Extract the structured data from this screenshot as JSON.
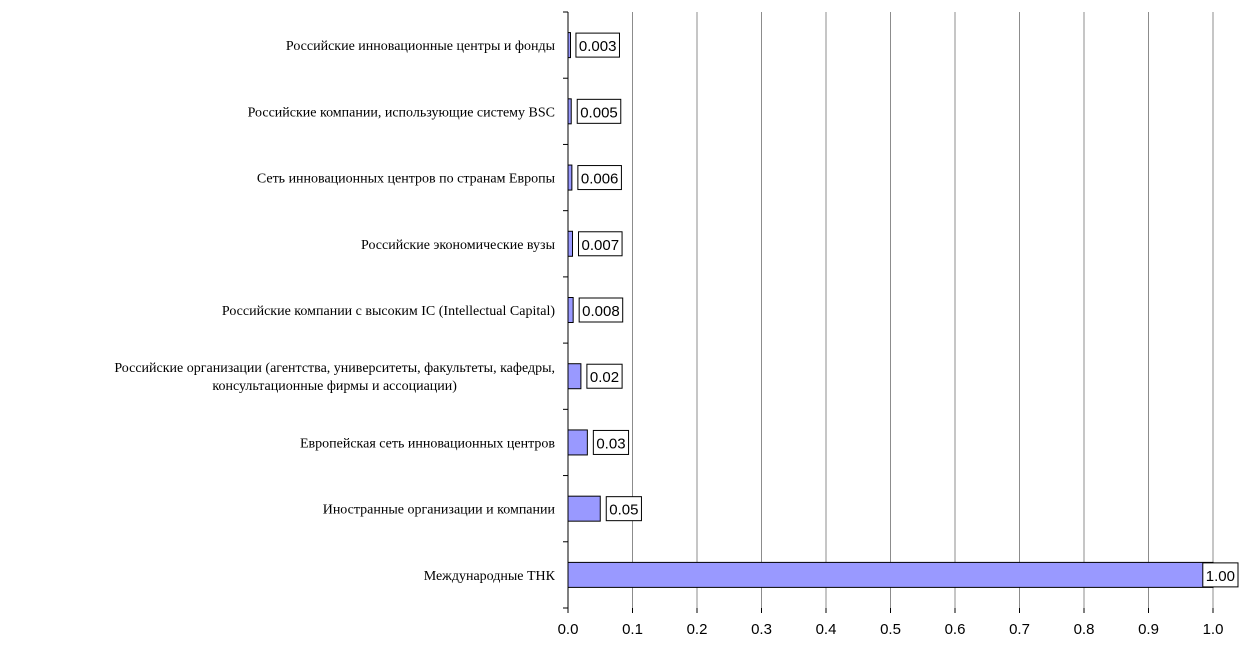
{
  "chart_data": {
    "type": "bar",
    "orientation": "horizontal",
    "title": "",
    "xlabel": "",
    "ylabel": "",
    "xlim": [
      0,
      1.0
    ],
    "x_ticks": [
      "0.0",
      "0.1",
      "0.2",
      "0.3",
      "0.4",
      "0.5",
      "0.6",
      "0.7",
      "0.8",
      "0.9",
      "1.0"
    ],
    "grid": "vertical",
    "legend": "none",
    "bar_color": "#9999ff",
    "categories": [
      [
        "Российские инновационные центры и фонды"
      ],
      [
        "Российские компании, использующие систему BSC"
      ],
      [
        "Сеть инновационных центров  по странам Европы"
      ],
      [
        "Российские экономические вузы"
      ],
      [
        "Российские компании с высоким IC (Intellectual Capital)"
      ],
      [
        "Российские организации (агентства, университеты, факультеты, кафедры,",
        "консультационные фирмы и ассоциации)"
      ],
      [
        "Европейская сеть инновационных центров"
      ],
      [
        "Иностранные организации и компании"
      ],
      [
        "Международные ТНК"
      ]
    ],
    "values": [
      0.003,
      0.005,
      0.006,
      0.007,
      0.008,
      0.02,
      0.03,
      0.05,
      1.0
    ],
    "data_labels": [
      "0.003",
      "0.005",
      "0.006",
      "0.007",
      "0.008",
      "0.02",
      "0.03",
      "0.05",
      "1.00"
    ]
  }
}
